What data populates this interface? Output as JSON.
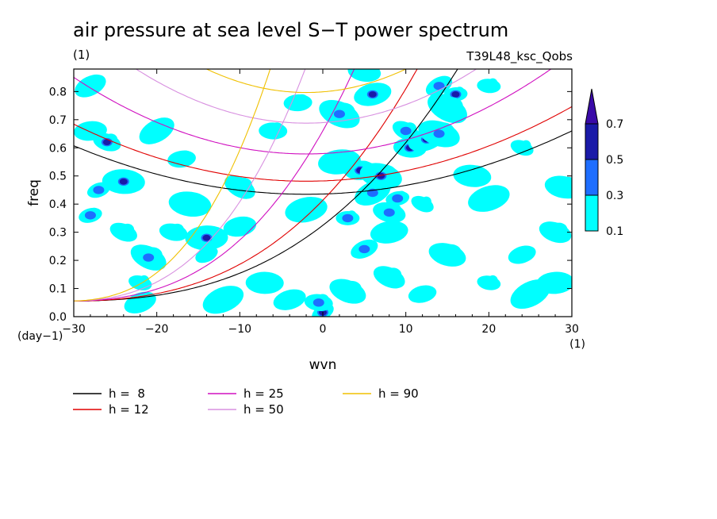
{
  "chart_data": {
    "type": "heatmap",
    "title": "air pressure at sea level S−T power spectrum",
    "units_label": "(1)",
    "subtitle_right": "T39L48_ksc_Qobs",
    "xlabel": "wvn",
    "ylabel": "freq",
    "x_unit_label": "(1)",
    "y_unit_label": "(day−1)",
    "xlim": [
      -30,
      30
    ],
    "ylim": [
      0,
      0.88
    ],
    "x_ticks": [
      -30,
      -20,
      -10,
      0,
      10,
      20,
      30
    ],
    "x_tick_labels": [
      "−30",
      "−20",
      "−10",
      "0",
      "10",
      "20",
      "30"
    ],
    "y_ticks": [
      0.0,
      0.1,
      0.2,
      0.3,
      0.4,
      0.5,
      0.6,
      0.7,
      0.8
    ],
    "y_tick_labels": [
      "0.0",
      "0.1",
      "0.2",
      "0.3",
      "0.4",
      "0.5",
      "0.6",
      "0.7",
      "0.8"
    ],
    "colorbar": {
      "levels": [
        0.1,
        0.3,
        0.5,
        0.7
      ],
      "level_labels": [
        "0.1",
        "0.3",
        "0.5",
        "0.7"
      ],
      "colors": [
        "#00ffff",
        "#1e6eff",
        "#1a1aa8",
        "#3a0aa8"
      ]
    },
    "contour_patches": [
      {
        "x": 0,
        "y": 0.015,
        "level": 2
      },
      {
        "x": -0.5,
        "y": 0.05,
        "level": 1
      },
      {
        "x": -4,
        "y": 0.06,
        "level": 0
      },
      {
        "x": 3,
        "y": 0.09,
        "level": 0
      },
      {
        "x": -14,
        "y": 0.28,
        "level": 2
      },
      {
        "x": -14,
        "y": 0.22,
        "level": 0
      },
      {
        "x": -18,
        "y": 0.3,
        "level": 0
      },
      {
        "x": -10,
        "y": 0.32,
        "level": 0
      },
      {
        "x": -21,
        "y": 0.21,
        "level": 1
      },
      {
        "x": -24,
        "y": 0.48,
        "level": 2
      },
      {
        "x": -27,
        "y": 0.45,
        "level": 1
      },
      {
        "x": -26,
        "y": 0.62,
        "level": 2
      },
      {
        "x": -28,
        "y": 0.66,
        "level": 0
      },
      {
        "x": -20,
        "y": 0.66,
        "level": 0
      },
      {
        "x": -16,
        "y": 0.4,
        "level": 0
      },
      {
        "x": -28,
        "y": 0.36,
        "level": 1
      },
      {
        "x": -24,
        "y": 0.3,
        "level": 0
      },
      {
        "x": 4.5,
        "y": 0.52,
        "level": 2
      },
      {
        "x": 6,
        "y": 0.44,
        "level": 1
      },
      {
        "x": 7,
        "y": 0.5,
        "level": 2
      },
      {
        "x": 9,
        "y": 0.42,
        "level": 1
      },
      {
        "x": 10,
        "y": 0.66,
        "level": 1
      },
      {
        "x": 10.5,
        "y": 0.6,
        "level": 2
      },
      {
        "x": 12.5,
        "y": 0.63,
        "level": 2
      },
      {
        "x": 14,
        "y": 0.65,
        "level": 1
      },
      {
        "x": 16,
        "y": 0.79,
        "level": 2
      },
      {
        "x": 14,
        "y": 0.82,
        "level": 1
      },
      {
        "x": 5,
        "y": 0.87,
        "level": 0
      },
      {
        "x": 6,
        "y": 0.79,
        "level": 2
      },
      {
        "x": 2,
        "y": 0.72,
        "level": 1
      },
      {
        "x": 3,
        "y": 0.35,
        "level": 1
      },
      {
        "x": 5,
        "y": 0.24,
        "level": 1
      },
      {
        "x": 8,
        "y": 0.37,
        "level": 1
      },
      {
        "x": 8,
        "y": 0.3,
        "level": 0
      },
      {
        "x": 15,
        "y": 0.74,
        "level": 0
      },
      {
        "x": 20,
        "y": 0.82,
        "level": 0
      },
      {
        "x": 24,
        "y": 0.22,
        "level": 0
      },
      {
        "x": 28,
        "y": 0.3,
        "level": 0
      },
      {
        "x": 28,
        "y": 0.12,
        "level": 0
      },
      {
        "x": 25,
        "y": 0.08,
        "level": 0
      },
      {
        "x": 20,
        "y": 0.12,
        "level": 0
      },
      {
        "x": 12,
        "y": 0.08,
        "level": 0
      },
      {
        "x": 8,
        "y": 0.14,
        "level": 0
      },
      {
        "x": -7,
        "y": 0.12,
        "level": 0
      },
      {
        "x": -12,
        "y": 0.06,
        "level": 0
      },
      {
        "x": -22,
        "y": 0.12,
        "level": 0
      },
      {
        "x": -17,
        "y": 0.56,
        "level": 0
      },
      {
        "x": -10,
        "y": 0.46,
        "level": 0
      },
      {
        "x": 18,
        "y": 0.5,
        "level": 0
      },
      {
        "x": 20,
        "y": 0.42,
        "level": 0
      },
      {
        "x": 24,
        "y": 0.6,
        "level": 0
      },
      {
        "x": -3,
        "y": 0.76,
        "level": 0
      },
      {
        "x": -28,
        "y": 0.82,
        "level": 0
      },
      {
        "x": 29,
        "y": 0.46,
        "level": 0
      },
      {
        "x": -2,
        "y": 0.38,
        "level": 0
      },
      {
        "x": 12,
        "y": 0.4,
        "level": 0
      },
      {
        "x": -6,
        "y": 0.66,
        "level": 0
      },
      {
        "x": -22,
        "y": 0.05,
        "level": 0
      },
      {
        "x": 15,
        "y": 0.22,
        "level": 0
      },
      {
        "x": 2,
        "y": 0.55,
        "level": 0
      }
    ],
    "series": [
      {
        "name": "h =  8",
        "h": 8,
        "color": "#000000"
      },
      {
        "name": "h = 12",
        "h": 12,
        "color": "#e00000"
      },
      {
        "name": "h = 25",
        "h": 25,
        "color": "#d010c0"
      },
      {
        "name": "h = 50",
        "h": 50,
        "color": "#d890e0"
      },
      {
        "name": "h = 90",
        "h": 90,
        "color": "#f0c000"
      }
    ],
    "legend_placement": "bottom",
    "grid": false
  }
}
